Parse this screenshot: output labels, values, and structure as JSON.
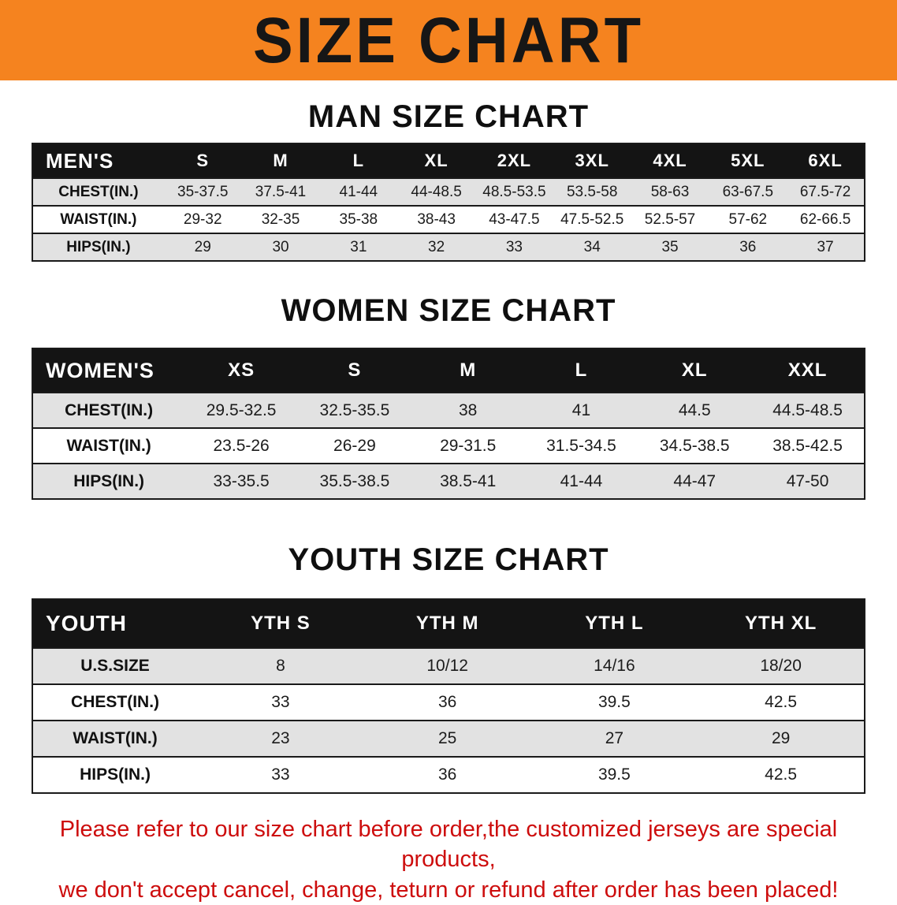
{
  "banner": {
    "title": "SIZE CHART",
    "bg_color": "#f5831f"
  },
  "colors": {
    "table_header_bg": "#141414",
    "row_stripe": "#e2e2e2",
    "disclaimer_text": "#cd0d0d"
  },
  "sections": {
    "men": {
      "heading": "MAN SIZE CHART",
      "table": {
        "header": [
          "MEN'S",
          "S",
          "M",
          "L",
          "XL",
          "2XL",
          "3XL",
          "4XL",
          "5XL",
          "6XL"
        ],
        "rows": [
          [
            "CHEST(IN.)",
            "35-37.5",
            "37.5-41",
            "41-44",
            "44-48.5",
            "48.5-53.5",
            "53.5-58",
            "58-63",
            "63-67.5",
            "67.5-72"
          ],
          [
            "WAIST(IN.)",
            "29-32",
            "32-35",
            "35-38",
            "38-43",
            "43-47.5",
            "47.5-52.5",
            "52.5-57",
            "57-62",
            "62-66.5"
          ],
          [
            "HIPS(IN.)",
            "29",
            "30",
            "31",
            "32",
            "33",
            "34",
            "35",
            "36",
            "37"
          ]
        ]
      }
    },
    "women": {
      "heading": "WOMEN SIZE CHART",
      "table": {
        "header": [
          "WOMEN'S",
          "XS",
          "S",
          "M",
          "L",
          "XL",
          "XXL"
        ],
        "rows": [
          [
            "CHEST(IN.)",
            "29.5-32.5",
            "32.5-35.5",
            "38",
            "41",
            "44.5",
            "44.5-48.5"
          ],
          [
            "WAIST(IN.)",
            "23.5-26",
            "26-29",
            "29-31.5",
            "31.5-34.5",
            "34.5-38.5",
            "38.5-42.5"
          ],
          [
            "HIPS(IN.)",
            "33-35.5",
            "35.5-38.5",
            "38.5-41",
            "41-44",
            "44-47",
            "47-50"
          ]
        ]
      }
    },
    "youth": {
      "heading": "YOUTH SIZE CHART",
      "table": {
        "header": [
          "YOUTH",
          "YTH S",
          "YTH M",
          "YTH L",
          "YTH XL"
        ],
        "rows": [
          [
            "U.S.SIZE",
            "8",
            "10/12",
            "14/16",
            "18/20"
          ],
          [
            "CHEST(IN.)",
            "33",
            "36",
            "39.5",
            "42.5"
          ],
          [
            "WAIST(IN.)",
            "23",
            "25",
            "27",
            "29"
          ],
          [
            "HIPS(IN.)",
            "33",
            "36",
            "39.5",
            "42.5"
          ]
        ]
      }
    }
  },
  "disclaimer": {
    "line1": "Please refer to our size chart before order,the customized jerseys are special products,",
    "line2": "we don't accept cancel, change, teturn or refund after order has been placed!"
  }
}
